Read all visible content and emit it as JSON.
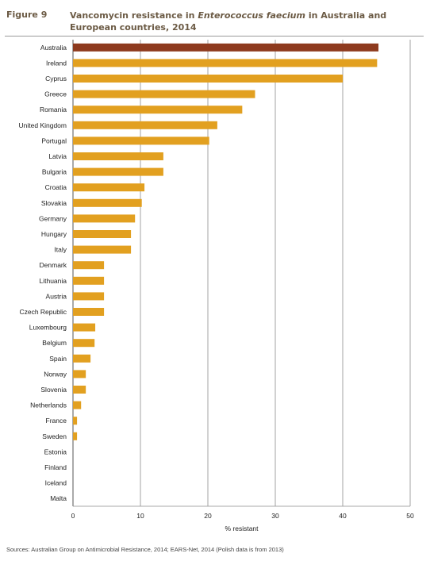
{
  "figure": {
    "label": "Figure 9",
    "title_pre": "Vancomycin resistance in ",
    "title_italic": "Enterococcus faecium",
    "title_post": " in Australia and European countries, 2014"
  },
  "source": "Sources:  Australian Group on Antimicrobial Resistance, 2014; EARS-Net, 2014 (Polish data is from 2013)",
  "colors": {
    "highlight": "#8e3a1e",
    "bar": "#e2a020",
    "grid": "#8c8c8c",
    "axis": "#555555"
  },
  "chart_data": {
    "type": "bar",
    "orientation": "horizontal",
    "xlabel": "% resistant",
    "ylabel": "",
    "xlim": [
      0,
      50
    ],
    "xticks": [
      0,
      10,
      20,
      30,
      40,
      50
    ],
    "grid": true,
    "categories": [
      "Australia",
      "Ireland",
      "Cyprus",
      "Greece",
      "Romania",
      "United Kingdom",
      "Portugal",
      "Latvia",
      "Bulgaria",
      "Croatia",
      "Slovakia",
      "Germany",
      "Hungary",
      "Italy",
      "Denmark",
      "Lithuania",
      "Austria",
      "Czech Republic",
      "Luxembourg",
      "Belgium",
      "Spain",
      "Norway",
      "Slovenia",
      "Netherlands",
      "France",
      "Sweden",
      "Estonia",
      "Finland",
      "Iceland",
      "Malta"
    ],
    "values": [
      45.3,
      45.1,
      40.0,
      27.0,
      25.1,
      21.4,
      20.2,
      13.4,
      13.4,
      10.6,
      10.2,
      9.2,
      8.6,
      8.6,
      4.6,
      4.6,
      4.6,
      4.6,
      3.3,
      3.2,
      2.6,
      1.9,
      1.9,
      1.2,
      0.6,
      0.6,
      0,
      0,
      0,
      0
    ],
    "highlight_category": "Australia"
  }
}
